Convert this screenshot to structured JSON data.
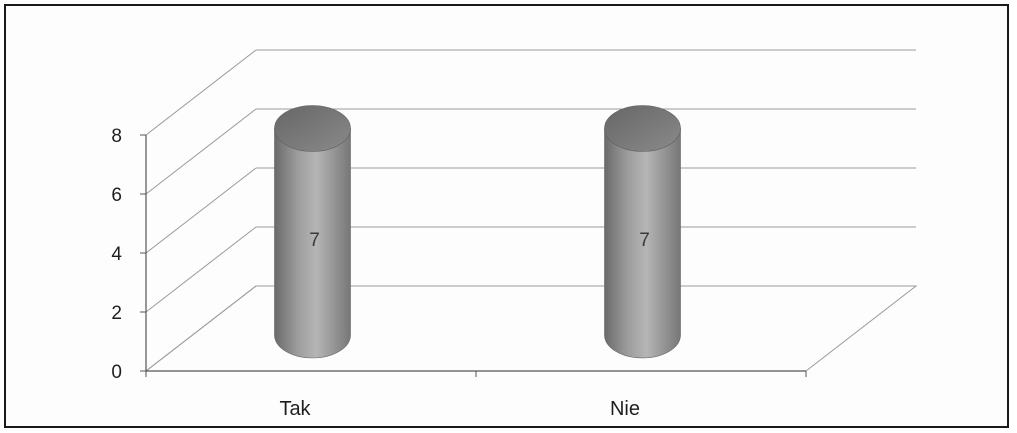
{
  "chart_data": {
    "type": "bar",
    "style": "3d-cylinder",
    "categories": [
      "Tak",
      "Nie"
    ],
    "values": [
      7,
      7
    ],
    "data_labels": [
      "7",
      "7"
    ],
    "y_ticks": [
      "0",
      "2",
      "4",
      "6",
      "8"
    ],
    "ylim": [
      0,
      8
    ],
    "grid": true,
    "legend": "none",
    "colors": {
      "bar_body": "#a9a9a9",
      "bar_top": "#777777",
      "grid": "#9a9a9a",
      "text": "#1f1f1f"
    }
  }
}
